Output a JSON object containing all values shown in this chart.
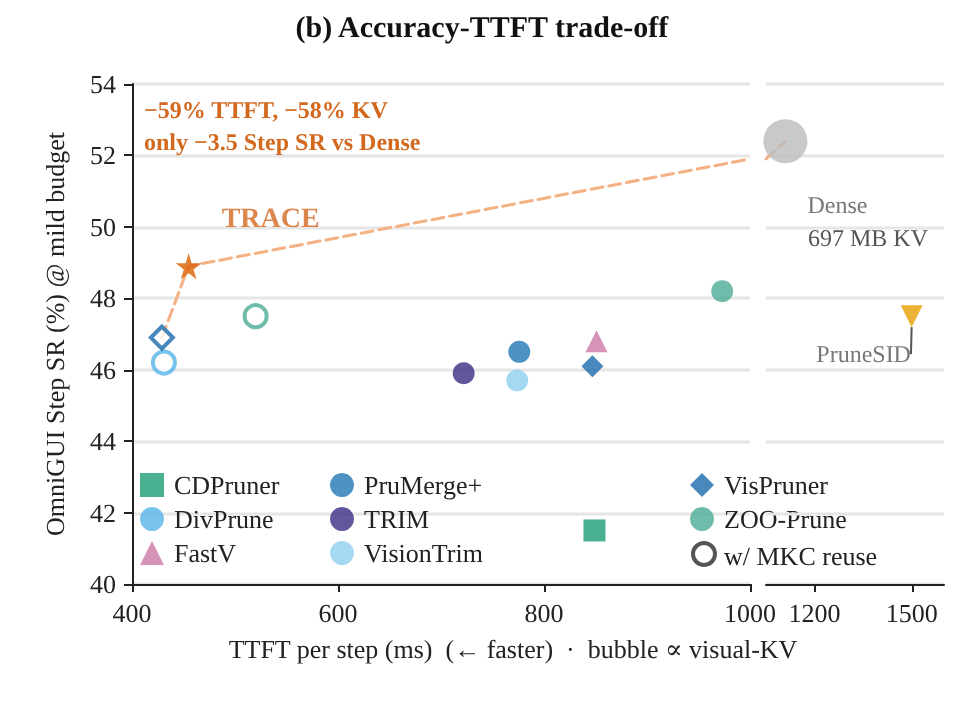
{
  "chart_data": [
    {
      "type": "scatter",
      "title": "(b) Accuracy-TTFT trade-off",
      "xlabel": "TTFT per step (ms)  (← faster)  ·  bubble ∝ visual-KV",
      "ylabel": "OmniGUI Step SR (%) @ mild budget",
      "annotations": [
        "−59% TTFT, −58% KV\nonly −3.5 Step SR vs Dense",
        {
          "text": "TRACE",
          "x": 455,
          "y": 48.9
        },
        "w/ MKC reuse"
      ],
      "xlim": [
        400,
        1000
      ],
      "xticks": [
        400,
        600,
        800,
        1000
      ],
      "ylim": [
        40,
        54
      ],
      "yticks": [
        40,
        42,
        44,
        46,
        48,
        50,
        52,
        54
      ],
      "grid": "y",
      "legend": "bottom",
      "series": [
        {
          "name": "CDPruner",
          "color": "#1b9e77",
          "marker": "square",
          "x": [
            849
          ],
          "values": [
            41.5
          ]
        },
        {
          "name": "DivPrune",
          "color": "#56b4e9",
          "marker": [
            "open-circle"
          ],
          "x": [
            431
          ],
          "values": [
            46.2
          ]
        },
        {
          "name": "FastV",
          "color": "#cc79a7",
          "marker": "triangle",
          "x": [
            851
          ],
          "values": [
            46.8
          ]
        },
        {
          "name": "PruMerge+",
          "color": "#1f78b4",
          "marker": "circle",
          "x": [
            776
          ],
          "values": [
            46.5
          ]
        },
        {
          "name": "TRIM",
          "color": "#3b2c85",
          "marker": "circle",
          "x": [
            722
          ],
          "values": [
            45.9
          ]
        },
        {
          "name": "VisionTrim",
          "color": "#8ecfee",
          "marker": "circle",
          "x": [
            774
          ],
          "values": [
            45.7
          ]
        },
        {
          "name": "VisPruner",
          "color": "#1a6aad",
          "marker": [
            "diamond",
            "open-diamond"
          ],
          "x": [
            847,
            429
          ],
          "values": [
            46.1,
            46.9
          ]
        },
        {
          "name": "ZOO-Prune",
          "color": "#4aab93",
          "marker": [
            "circle",
            "open-circle"
          ],
          "x": [
            973,
            520
          ],
          "values": [
            48.2,
            47.5
          ]
        },
        {
          "color": "#d95f02",
          "marker": "star",
          "x": [
            455
          ],
          "values": [
            48.9
          ]
        },
        {
          "type": "line",
          "color": "#f4b183",
          "line_style": "dashed",
          "marker": "none",
          "x": [
            429,
            455,
            1000
          ],
          "values": [
            46.9,
            48.9,
            51.9
          ]
        }
      ]
    },
    {
      "type": "scatter",
      "xlim": [
        1050,
        1600
      ],
      "xticks": [
        1200,
        1500
      ],
      "ylim": [
        40,
        54
      ],
      "yticks": [
        40,
        42,
        44,
        46,
        48,
        50,
        52,
        54
      ],
      "tick_labels": "x",
      "grid": "y",
      "annotations": [
        "697 MB KV"
      ],
      "series": [
        {
          "type": "line",
          "color": "#f4b183",
          "line_style": "dashed",
          "marker": "none",
          "x": [
            1050,
            1110
          ],
          "values": [
            51.9,
            52.4
          ]
        },
        {
          "name": "Dense",
          "type": "bubble",
          "color": "#bbbbbb",
          "marker": "circle",
          "x": [
            1110
          ],
          "values": [
            52.4
          ],
          "sizes": [
            1
          ]
        },
        {
          "name": "PruneSID",
          "color": "#e69f00",
          "marker": "triangle-down",
          "x": [
            1500
          ],
          "values": [
            47.5
          ]
        }
      ]
    }
  ]
}
